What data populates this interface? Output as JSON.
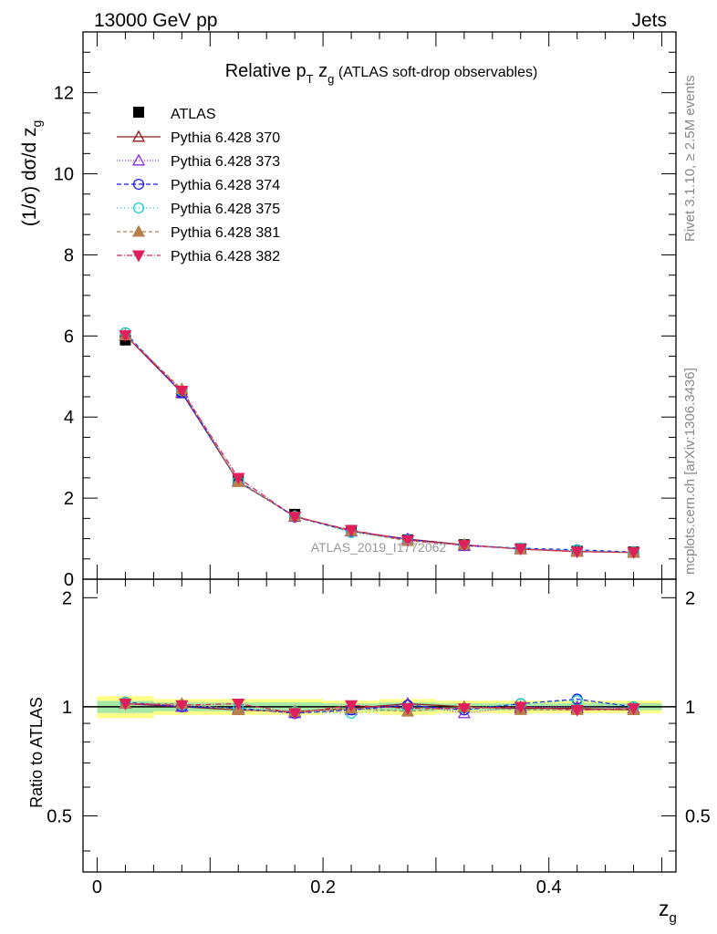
{
  "header": {
    "left": "13000 GeV pp",
    "right": "Jets"
  },
  "side_labels": {
    "rivet": "Rivet 3.1.10, ≥ 2.5M events",
    "mcplots": "mcplots.cern.ch [arXiv:1306.3436]"
  },
  "chart_data": {
    "type": "line",
    "title": "Relative p_T z_g (ATLAS soft-drop observables)",
    "watermark": "ATLAS_2019_I1772062",
    "xlabel": "z_g",
    "ylabel": "(1/σ) dσ/d z_g",
    "ratio_ylabel": "Ratio to ATLAS",
    "xlim": [
      -0.0125,
      0.5125
    ],
    "ylim": [
      0,
      13.5
    ],
    "ratio_ylim": [
      0.35,
      2.25
    ],
    "x_ticks": [
      "0",
      "0.2",
      "0.4"
    ],
    "y_ticks": [
      "0",
      "2",
      "4",
      "6",
      "8",
      "10",
      "12"
    ],
    "ratio_ticks": [
      "0.5",
      "1",
      "2"
    ],
    "legend_position": "top-left",
    "x": [
      0.025,
      0.075,
      0.125,
      0.175,
      0.225,
      0.275,
      0.325,
      0.375,
      0.425,
      0.475
    ],
    "data": {
      "name": "ATLAS",
      "values": [
        5.9,
        4.6,
        2.45,
        1.6,
        1.2,
        0.97,
        0.85,
        0.75,
        0.69,
        0.67
      ]
    },
    "band_halfwidth": [
      0.07,
      0.05,
      0.05,
      0.05,
      0.04,
      0.05,
      0.04,
      0.04,
      0.04,
      0.04
    ],
    "series": [
      {
        "name": "Pythia 6.428 370",
        "color": "#8b1a1a",
        "marker": "triangle-open",
        "dash": "",
        "ratio": [
          1.02,
          1.0,
          0.98,
          0.97,
          0.99,
          1.02,
          1.0,
          0.99,
          0.99,
          0.98
        ]
      },
      {
        "name": "Pythia 6.428 373",
        "color": "#8a2be2",
        "marker": "triangle-open",
        "dash": "1,2",
        "ratio": [
          1.02,
          1.0,
          0.99,
          0.96,
          0.98,
          1.02,
          0.96,
          1.0,
          1.0,
          0.99
        ]
      },
      {
        "name": "Pythia 6.428 374",
        "color": "#1a1aee",
        "marker": "circle-open",
        "dash": "5,3",
        "ratio": [
          1.03,
          1.0,
          0.99,
          0.96,
          0.98,
          1.01,
          0.98,
          1.02,
          1.05,
          1.0
        ]
      },
      {
        "name": "Pythia 6.428 375",
        "color": "#10d0c0",
        "marker": "circle-open",
        "dash": "1,3",
        "ratio": [
          1.03,
          1.01,
          0.99,
          0.97,
          0.96,
          0.99,
          0.99,
          1.02,
          1.04,
          1.0
        ]
      },
      {
        "name": "Pythia 6.428 381",
        "color": "#b5804b",
        "marker": "triangle-filled",
        "dash": "4,3",
        "ratio": [
          1.02,
          1.02,
          0.98,
          0.97,
          0.99,
          0.97,
          1.0,
          0.98,
          0.98,
          0.98
        ]
      },
      {
        "name": "Pythia 6.428 382",
        "color": "#e0205a",
        "marker": "triangledown-filled",
        "dash": "6,2,1,2",
        "ratio": [
          1.02,
          1.01,
          1.02,
          0.96,
          1.01,
          0.99,
          0.99,
          1.0,
          0.98,
          0.99
        ]
      }
    ]
  }
}
